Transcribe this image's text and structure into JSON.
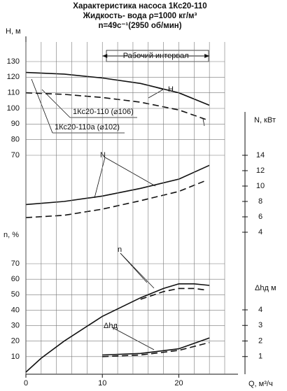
{
  "title_lines": [
    "Характеристика насоса 1Кс20-110",
    "Жидкость- вода ρ=1000 кг/м³",
    "n=49с⁻¹(2950 об/мин)"
  ],
  "chart_data": [
    {
      "type": "line",
      "ylabel": "H, м",
      "ylim": [
        70,
        130
      ],
      "yticks": [
        70,
        80,
        90,
        100,
        110,
        120,
        130
      ],
      "xlim": [
        0,
        26
      ],
      "curve_label": "H",
      "work_label": "Рабочий интервал",
      "work_range": [
        10,
        24
      ],
      "series": [
        {
          "name": "1Кс20-110 (⌀106)",
          "color": "#111",
          "dash": false,
          "x": [
            0,
            5,
            10,
            15,
            20,
            24
          ],
          "values": [
            123,
            122,
            119.5,
            116,
            110,
            102
          ]
        },
        {
          "name": "1Кс20-110а (⌀102)",
          "color": "#111",
          "dash": true,
          "x": [
            0,
            5,
            10,
            15,
            20,
            23.5
          ],
          "values": [
            110,
            109,
            107,
            104,
            99,
            93
          ]
        }
      ]
    },
    {
      "type": "line",
      "ylabel": "N, кВт",
      "ylim": [
        4,
        14
      ],
      "yticks": [
        4,
        6,
        8,
        10,
        12,
        14
      ],
      "xlim": [
        0,
        26
      ],
      "axis_side": "right",
      "curve_label": "N",
      "series": [
        {
          "color": "#111",
          "dash": false,
          "x": [
            0,
            5,
            10,
            15,
            20,
            24
          ],
          "values": [
            7.6,
            8.0,
            8.7,
            9.7,
            10.9,
            12.7
          ]
        },
        {
          "color": "#111",
          "dash": true,
          "x": [
            0,
            5,
            10,
            15,
            20,
            23.5
          ],
          "values": [
            5.9,
            6.2,
            7.0,
            8.1,
            9.3,
            10.7
          ]
        }
      ]
    },
    {
      "type": "line",
      "ylabel": "n, %",
      "ylim": [
        0,
        70
      ],
      "yticks": [
        10,
        20,
        30,
        40,
        50,
        60,
        70
      ],
      "xlim": [
        0,
        26
      ],
      "xlabel": "Q, м³/ч",
      "xticks": [
        0,
        10,
        20
      ],
      "xgrid": [
        0,
        2,
        4,
        6,
        8,
        10,
        12,
        14,
        16,
        18,
        20,
        22,
        24,
        26
      ],
      "curve_label": "n",
      "series": [
        {
          "color": "#111",
          "dash": false,
          "x": [
            0,
            2,
            5,
            10,
            15,
            18,
            20,
            22,
            24
          ],
          "values": [
            0,
            9,
            20,
            36,
            48,
            54,
            57,
            57,
            56
          ]
        },
        {
          "color": "#111",
          "dash": true,
          "x": [
            15,
            18,
            20,
            22,
            23.5
          ],
          "values": [
            47,
            52,
            54,
            54,
            53
          ]
        }
      ]
    },
    {
      "type": "line",
      "ylabel": "Δhд м",
      "ylim": [
        0,
        4
      ],
      "yticks": [
        1,
        2,
        3,
        4
      ],
      "xlim": [
        0,
        26
      ],
      "axis_side": "right",
      "curve_label": "Δhд",
      "series": [
        {
          "color": "#111",
          "dash": false,
          "x": [
            10,
            15,
            20,
            24
          ],
          "values": [
            1.1,
            1.2,
            1.5,
            2.2
          ]
        },
        {
          "color": "#111",
          "dash": true,
          "x": [
            10,
            15,
            20,
            24
          ],
          "values": [
            1.0,
            1.1,
            1.4,
            1.9
          ]
        }
      ]
    }
  ]
}
